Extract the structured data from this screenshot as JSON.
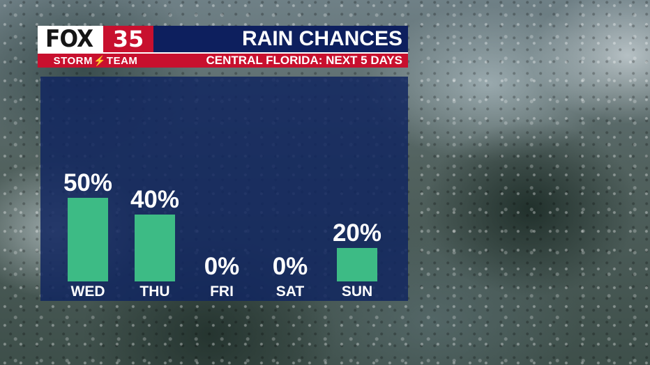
{
  "brand": {
    "logo_fox": "FOX",
    "logo_number": "35",
    "logo_team": "STORM",
    "logo_team2": "TEAM"
  },
  "header": {
    "title": "RAIN CHANCES",
    "subtitle": "CENTRAL FLORIDA: NEXT 5 DAYS"
  },
  "colors": {
    "bar": "#3dbb85",
    "panel": "#122660",
    "accent_red": "#c8102e",
    "title_navy": "#0d1f5e"
  },
  "chart_data": {
    "type": "bar",
    "categories": [
      "WED",
      "THU",
      "FRI",
      "SAT",
      "SUN"
    ],
    "values": [
      50,
      40,
      0,
      0,
      20
    ],
    "data_labels": [
      "50%",
      "40%",
      "0%",
      "0%",
      "20%"
    ],
    "title": "RAIN CHANCES",
    "subtitle": "CENTRAL FLORIDA: NEXT 5 DAYS",
    "unit": "%",
    "ylim": [
      0,
      100
    ],
    "grid": false,
    "legend": "none"
  }
}
